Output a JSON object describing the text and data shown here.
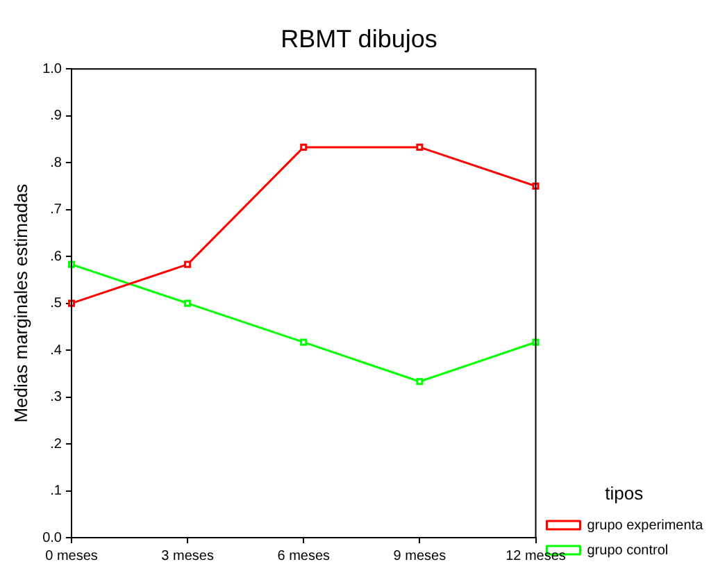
{
  "chart_data": {
    "type": "line",
    "title": "RBMT dibujos",
    "ylabel": "Medias marginales estimadas",
    "legend_title": "tipos",
    "categories": [
      "0 meses",
      "3 meses",
      "6 meses",
      "9 meses",
      "12 meses"
    ],
    "series": [
      {
        "name": "grupo experimenta",
        "color": "#ff0000",
        "values": [
          0.5,
          0.583,
          0.833,
          0.833,
          0.75
        ]
      },
      {
        "name": "grupo control",
        "color": "#00ff00",
        "values": [
          0.583,
          0.5,
          0.417,
          0.333,
          0.417
        ]
      }
    ],
    "ylim": [
      0,
      1
    ],
    "yticks": [
      {
        "value": 0,
        "label": "0.0"
      },
      {
        "value": 0.1,
        "label": ".1"
      },
      {
        "value": 0.2,
        "label": ".2"
      },
      {
        "value": 0.3,
        "label": ".3"
      },
      {
        "value": 0.4,
        "label": ".4"
      },
      {
        "value": 0.5,
        "label": ".5"
      },
      {
        "value": 0.6,
        "label": ".6"
      },
      {
        "value": 0.7,
        "label": ".7"
      },
      {
        "value": 0.8,
        "label": ".8"
      },
      {
        "value": 0.9,
        "label": ".9"
      },
      {
        "value": 1,
        "label": "1.0"
      }
    ],
    "grid": false,
    "legend": "bottom right",
    "marker": "square",
    "line_style": "solid"
  }
}
